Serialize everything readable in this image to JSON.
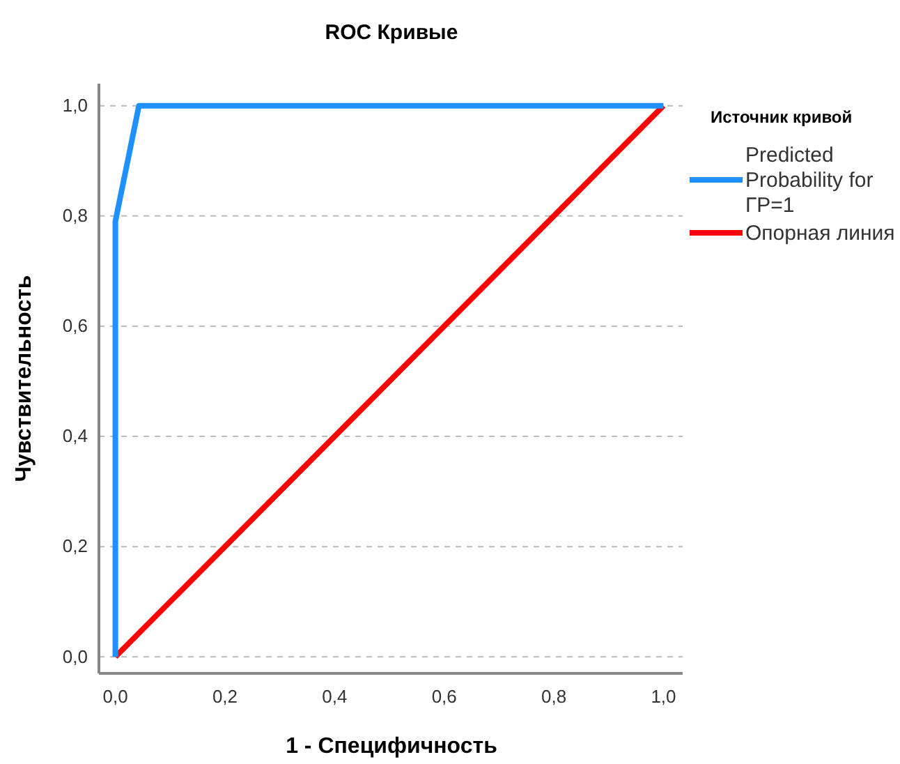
{
  "chart_data": {
    "type": "line",
    "title": "ROC Кривые",
    "xlabel": "1 - Специфичность",
    "ylabel": "Чувствительность",
    "legend_title": "Источник кривой",
    "legend": "right",
    "grid": "y",
    "xlim": [
      -0.03,
      1.035
    ],
    "ylim": [
      -0.03,
      1.04
    ],
    "xticks": [
      {
        "value": 0,
        "label": "0,0"
      },
      {
        "value": 0.2,
        "label": "0,2"
      },
      {
        "value": 0.4,
        "label": "0,4"
      },
      {
        "value": 0.6,
        "label": "0,6"
      },
      {
        "value": 0.8,
        "label": "0,8"
      },
      {
        "value": 1,
        "label": "1,0"
      }
    ],
    "yticks": [
      {
        "value": 0,
        "label": "0,0"
      },
      {
        "value": 0.2,
        "label": "0,2"
      },
      {
        "value": 0.4,
        "label": "0,4"
      },
      {
        "value": 0.6,
        "label": "0,6"
      },
      {
        "value": 0.8,
        "label": "0,8"
      },
      {
        "value": 1,
        "label": "1,0"
      }
    ],
    "series": [
      {
        "name": "Predicted Probability for ГР=1",
        "color": "#1e90ff",
        "x": [
          0,
          0,
          0.043,
          1
        ],
        "values": [
          0,
          0.79,
          1,
          1
        ]
      },
      {
        "name": "Опорная линия",
        "color": "#ff0000",
        "x": [
          0,
          1
        ],
        "values": [
          0,
          1
        ]
      }
    ]
  }
}
